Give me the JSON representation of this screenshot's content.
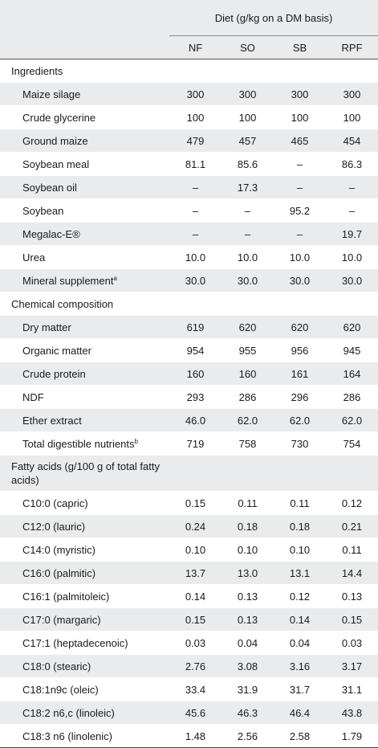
{
  "header": {
    "diet_label": "Diet (g/kg on a DM basis)",
    "columns": [
      "NF",
      "SO",
      "SB",
      "RPF"
    ]
  },
  "sections": [
    {
      "title": "Ingredients",
      "rows": [
        {
          "label": "Maize silage",
          "values": [
            "300",
            "300",
            "300",
            "300"
          ]
        },
        {
          "label": "Crude glycerine",
          "values": [
            "100",
            "100",
            "100",
            "100"
          ]
        },
        {
          "label": "Ground maize",
          "values": [
            "479",
            "457",
            "465",
            "454"
          ]
        },
        {
          "label": "Soybean meal",
          "values": [
            "81.1",
            "85.6",
            "–",
            "86.3"
          ]
        },
        {
          "label": "Soybean oil",
          "values": [
            "–",
            "17.3",
            "–",
            "–"
          ]
        },
        {
          "label": "Soybean",
          "values": [
            "–",
            "–",
            "95.2",
            "–"
          ]
        },
        {
          "label": "Megalac-E®",
          "values": [
            "–",
            "–",
            "–",
            "19.7"
          ]
        },
        {
          "label": "Urea",
          "values": [
            "10.0",
            "10.0",
            "10.0",
            "10.0"
          ]
        },
        {
          "label": "Mineral supplement",
          "sup": "a",
          "values": [
            "30.0",
            "30.0",
            "30.0",
            "30.0"
          ]
        }
      ]
    },
    {
      "title": "Chemical composition",
      "rows": [
        {
          "label": "Dry matter",
          "values": [
            "619",
            "620",
            "620",
            "620"
          ]
        },
        {
          "label": "Organic matter",
          "values": [
            "954",
            "955",
            "956",
            "945"
          ]
        },
        {
          "label": "Crude protein",
          "values": [
            "160",
            "160",
            "161",
            "164"
          ]
        },
        {
          "label": "NDF",
          "values": [
            "293",
            "286",
            "296",
            "286"
          ]
        },
        {
          "label": "Ether extract",
          "values": [
            "46.0",
            "62.0",
            "62.0",
            "62.0"
          ]
        },
        {
          "label": "Total digestible nutrients",
          "sup": "b",
          "values": [
            "719",
            "758",
            "730",
            "754"
          ]
        }
      ]
    },
    {
      "title": "Fatty acids (g/100 g of total fatty acids)",
      "rows": [
        {
          "label": "C10:0 (capric)",
          "values": [
            "0.15",
            "0.11",
            "0.11",
            "0.12"
          ]
        },
        {
          "label": "C12:0 (lauric)",
          "values": [
            "0.24",
            "0.18",
            "0.18",
            "0.21"
          ]
        },
        {
          "label": "C14:0 (myristic)",
          "values": [
            "0.10",
            "0.10",
            "0.10",
            "0.11"
          ]
        },
        {
          "label": "C16:0 (palmitic)",
          "values": [
            "13.7",
            "13.0",
            "13.1",
            "14.4"
          ]
        },
        {
          "label": "C16:1 (palmitoleic)",
          "values": [
            "0.14",
            "0.13",
            "0.12",
            "0.13"
          ]
        },
        {
          "label": "C17:0 (margaric)",
          "values": [
            "0.15",
            "0.13",
            "0.14",
            "0.15"
          ]
        },
        {
          "label": "C17:1 (heptadecenoic)",
          "values": [
            "0.03",
            "0.04",
            "0.04",
            "0.03"
          ]
        },
        {
          "label": "C18:0 (stearic)",
          "values": [
            "2.76",
            "3.08",
            "3.16",
            "3.17"
          ]
        },
        {
          "label": "C18:1n9c (oleic)",
          "values": [
            "33.4",
            "31.9",
            "31.7",
            "31.1"
          ]
        },
        {
          "label": "C18:2 n6,c (linoleic)",
          "values": [
            "45.6",
            "46.3",
            "46.4",
            "43.8"
          ]
        },
        {
          "label": "C18:3 n6 (linolenic)",
          "values": [
            "1.48",
            "2.56",
            "2.58",
            "1.79"
          ]
        }
      ]
    }
  ]
}
